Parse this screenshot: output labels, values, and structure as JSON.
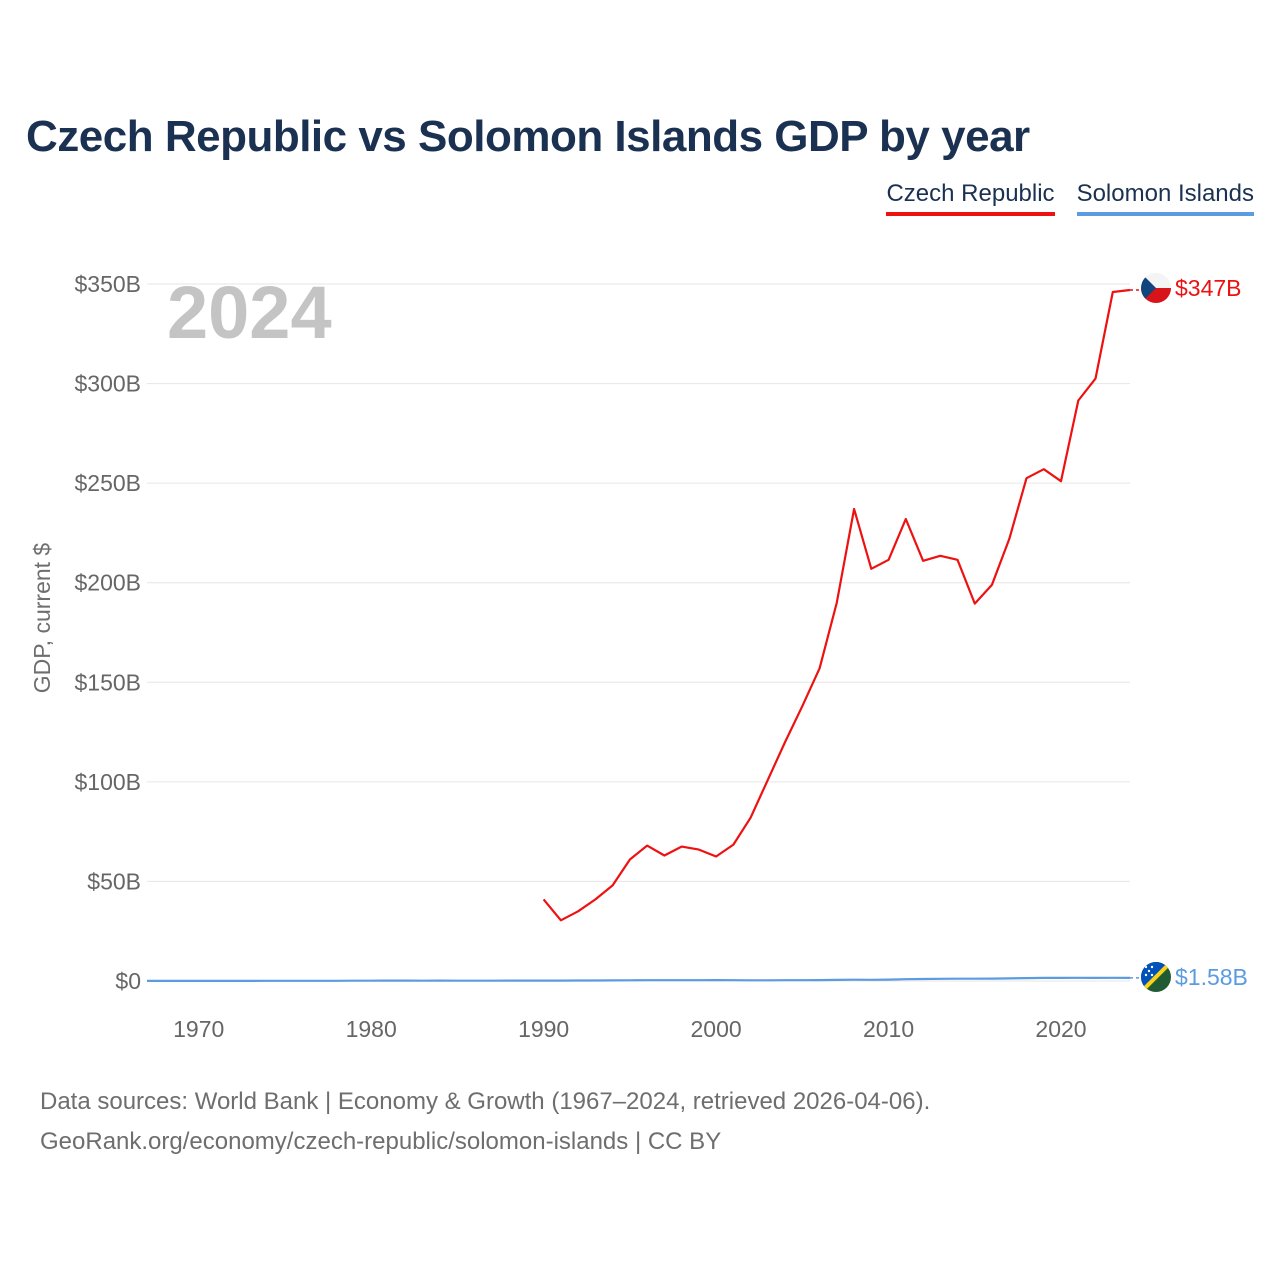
{
  "header": {
    "title": "Czech Republic vs Solomon Islands GDP by year"
  },
  "legend": [
    {
      "label": "Czech Republic",
      "color": "#ee1111"
    },
    {
      "label": "Solomon Islands",
      "color": "#5b9be0"
    }
  ],
  "footer": {
    "sources": "Data sources: World Bank | Economy & Growth (1967–2024, retrieved 2026-04-06).",
    "credit": "GeoRank.org/economy/czech-republic/solomon-islands | CC BY"
  },
  "chart_data": {
    "type": "line",
    "title": "Czech Republic vs Solomon Islands GDP by year",
    "year_label": "2024",
    "xlabel": "",
    "ylabel": "GDP, current $",
    "xlim": [
      1967,
      2024
    ],
    "ylim": [
      0,
      350
    ],
    "x_ticks": [
      1970,
      1980,
      1990,
      2000,
      2010,
      2020
    ],
    "y_ticks": [
      0,
      50,
      100,
      150,
      200,
      250,
      300,
      350
    ],
    "y_tick_labels": [
      "$0",
      "$50B",
      "$100B",
      "$150B",
      "$200B",
      "$250B",
      "$300B",
      "$350B"
    ],
    "grid": true,
    "series": [
      {
        "name": "Czech Republic",
        "color": "#ee1111",
        "end_label": "$347B",
        "icon": "czech-flag-icon",
        "x": [
          1990,
          1991,
          1992,
          1993,
          1994,
          1995,
          1996,
          1997,
          1998,
          1999,
          2000,
          2001,
          2002,
          2003,
          2004,
          2005,
          2006,
          2007,
          2008,
          2009,
          2010,
          2011,
          2012,
          2013,
          2014,
          2015,
          2016,
          2017,
          2018,
          2019,
          2020,
          2021,
          2022,
          2023,
          2024
        ],
        "values": [
          41,
          30.5,
          35,
          41,
          48,
          61,
          68,
          63,
          67.5,
          66,
          62.5,
          68.5,
          82,
          101,
          120,
          138,
          157,
          190,
          237,
          207,
          211.5,
          232,
          211,
          213.5,
          211.5,
          189.5,
          199,
          222,
          252.5,
          257,
          251,
          291.5,
          302.5,
          346,
          347
        ]
      },
      {
        "name": "Solomon Islands",
        "color": "#5b9be0",
        "end_label": "$1.58B",
        "icon": "solomon-islands-flag-icon",
        "x": [
          1967,
          1968,
          1969,
          1970,
          1971,
          1972,
          1973,
          1974,
          1975,
          1976,
          1977,
          1978,
          1979,
          1980,
          1981,
          1982,
          1983,
          1984,
          1985,
          1986,
          1987,
          1988,
          1989,
          1990,
          1991,
          1992,
          1993,
          1994,
          1995,
          1996,
          1997,
          1998,
          1999,
          2000,
          2001,
          2002,
          2003,
          2004,
          2005,
          2006,
          2007,
          2008,
          2009,
          2010,
          2011,
          2012,
          2013,
          2014,
          2015,
          2016,
          2017,
          2018,
          2019,
          2020,
          2021,
          2022,
          2023,
          2024
        ],
        "values": [
          0.03,
          0.03,
          0.03,
          0.04,
          0.04,
          0.05,
          0.06,
          0.08,
          0.08,
          0.09,
          0.1,
          0.12,
          0.15,
          0.16,
          0.19,
          0.18,
          0.16,
          0.19,
          0.16,
          0.14,
          0.15,
          0.18,
          0.19,
          0.2,
          0.22,
          0.24,
          0.27,
          0.3,
          0.34,
          0.39,
          0.41,
          0.38,
          0.39,
          0.43,
          0.39,
          0.34,
          0.34,
          0.38,
          0.42,
          0.47,
          0.54,
          0.63,
          0.6,
          0.71,
          0.92,
          1.02,
          1.11,
          1.17,
          1.16,
          1.22,
          1.33,
          1.45,
          1.57,
          1.55,
          1.6,
          1.55,
          1.61,
          1.58
        ]
      }
    ]
  }
}
